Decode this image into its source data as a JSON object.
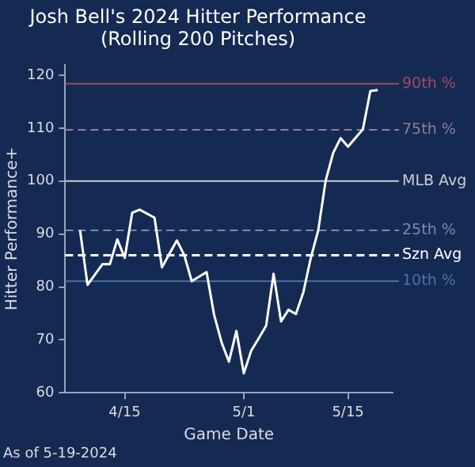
{
  "chart_data": {
    "type": "line",
    "title": "Josh Bell's 2024 Hitter Performance",
    "subtitle": "(Rolling 200 Pitches)",
    "xlabel": "Game Date",
    "ylabel": "Hitter Performance+",
    "x": [
      "2024-04-09",
      "2024-04-10",
      "2024-04-12",
      "2024-04-13",
      "2024-04-14",
      "2024-04-15",
      "2024-04-16",
      "2024-04-17",
      "2024-04-19",
      "2024-04-20",
      "2024-04-22",
      "2024-04-23",
      "2024-04-24",
      "2024-04-26",
      "2024-04-27",
      "2024-04-28",
      "2024-04-29",
      "2024-04-30",
      "2024-05-01",
      "2024-05-02",
      "2024-05-03",
      "2024-05-04",
      "2024-05-05",
      "2024-05-06",
      "2024-05-07",
      "2024-05-08",
      "2024-05-09",
      "2024-05-10",
      "2024-05-11",
      "2024-05-12",
      "2024-05-13",
      "2024-05-14",
      "2024-05-15",
      "2024-05-17",
      "2024-05-18",
      "2024-05-19"
    ],
    "series": [
      {
        "color": "#ffffff",
        "values": [
          90.7,
          80.4,
          84.3,
          84.3,
          89,
          85.5,
          94,
          94.6,
          93.1,
          83.7,
          88.8,
          86,
          81.1,
          82.8,
          74.8,
          69.6,
          65.9,
          71.7,
          63.7,
          68,
          70.3,
          72.7,
          82.5,
          73.5,
          75.7,
          74.9,
          79,
          85.5,
          90.7,
          100.1,
          105.3,
          108.1,
          106.5,
          109.8,
          117,
          117.2
        ]
      }
    ],
    "xlim": [
      "2024-04-07",
      "2024-05-21"
    ],
    "xticks": [
      {
        "value": "2024-04-15",
        "label": "4/15"
      },
      {
        "value": "2024-05-01",
        "label": "5/1"
      },
      {
        "value": "2024-05-15",
        "label": "5/15"
      }
    ],
    "ylim": [
      60,
      122
    ],
    "yticks": [
      60,
      70,
      80,
      90,
      100,
      110,
      120
    ],
    "ref_lines": [
      {
        "axis": "y",
        "value": 118.4,
        "label": "90th %",
        "color": "#a34a63",
        "line_style": "solid"
      },
      {
        "axis": "y",
        "value": 109.7,
        "label": "75th %",
        "color": "#8e7f97",
        "line_style": "dashed"
      },
      {
        "axis": "y",
        "value": 100,
        "label": "MLB Avg",
        "color": "#c9ccd6",
        "line_style": "solid"
      },
      {
        "axis": "y",
        "value": 90.7,
        "label": "25th %",
        "color": "#7f8aa6",
        "line_style": "dashed"
      },
      {
        "axis": "y",
        "value": 86,
        "label": "Szn Avg",
        "color": "#ffffff",
        "line_style": "dashed"
      },
      {
        "axis": "y",
        "value": 81.1,
        "label": "10th %",
        "color": "#4a70a8",
        "line_style": "solid"
      }
    ],
    "annotations": [
      "As of 5-19-2024"
    ],
    "grid": false,
    "legend": false,
    "marker": "none",
    "line_style": "solid"
  }
}
